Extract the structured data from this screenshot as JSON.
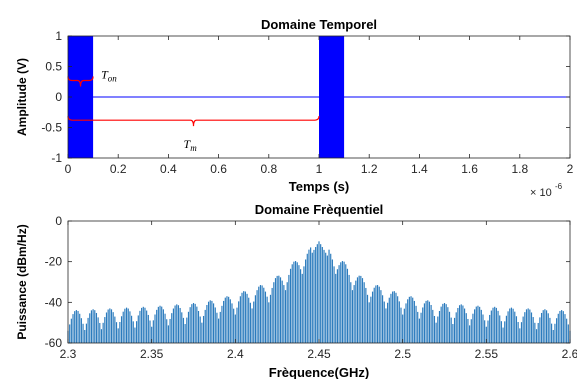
{
  "colors": {
    "pulse_fill": "#0000ff",
    "time_signal": "#0000ff",
    "spectrum_fill": "#2b7bbd",
    "annotation": "#ff0000"
  },
  "chart_data": [
    {
      "type": "line",
      "title": "Domaine Temporel",
      "xlabel": "Temps (s)",
      "ylabel": "Amplitude (V)",
      "xlim": [
        0,
        2e-06
      ],
      "ylim": [
        -1,
        1
      ],
      "x_exponent_label": "× 10",
      "x_exponent_power": "-6",
      "x_ticks": [
        0,
        2e-07,
        4e-07,
        6e-07,
        8e-07,
        1e-06,
        1.2e-06,
        1.4e-06,
        1.6e-06,
        1.8e-06,
        2e-06
      ],
      "x_tick_labels": [
        "0",
        "0.2",
        "0.4",
        "0.6",
        "0.8",
        "1",
        "1.2",
        "1.4",
        "1.6",
        "1.8",
        "2"
      ],
      "y_ticks": [
        1,
        0.5,
        0,
        -0.5,
        -1
      ],
      "y_tick_labels": [
        "1",
        "0.5",
        "0",
        "-0.5",
        "-1"
      ],
      "grid": false,
      "pulses": [
        {
          "start": 0,
          "end": 1e-07
        },
        {
          "start": 1e-06,
          "end": 1.1e-06
        }
      ],
      "baseline": 0,
      "annotations": [
        {
          "label": "T",
          "subscript": "on",
          "span": [
            0,
            1e-07
          ],
          "level": 0.27
        },
        {
          "label": "T",
          "subscript": "m",
          "span": [
            0,
            1e-06
          ],
          "level": -0.38
        }
      ]
    },
    {
      "type": "bar",
      "title": "Domaine Frèquentiel",
      "xlabel": "Frèquence(GHz)",
      "ylabel": "Puissance (dBm/Hz)",
      "xlim": [
        2.3,
        2.6
      ],
      "ylim": [
        -60,
        0
      ],
      "x_ticks": [
        2.3,
        2.35,
        2.4,
        2.45,
        2.5,
        2.55,
        2.6
      ],
      "x_tick_labels": [
        "2.3",
        "2.35",
        "2.4",
        "2.45",
        "2.5",
        "2.55",
        "2.6"
      ],
      "y_ticks": [
        0,
        -20,
        -40,
        -60
      ],
      "y_tick_labels": [
        "0",
        "-20",
        "-40",
        "-60"
      ],
      "grid": false,
      "center_frequency": 2.45,
      "line_spacing": 0.001,
      "peak_level": -10,
      "envelope": {
        "offsets": [
          0,
          0.01,
          0.02,
          0.03,
          0.05,
          0.07,
          0.1,
          0.15
        ],
        "levels": [
          -10,
          -16,
          -24,
          -30,
          -36,
          -40,
          -42,
          -44
        ]
      },
      "lobe_period": 0.01
    }
  ]
}
